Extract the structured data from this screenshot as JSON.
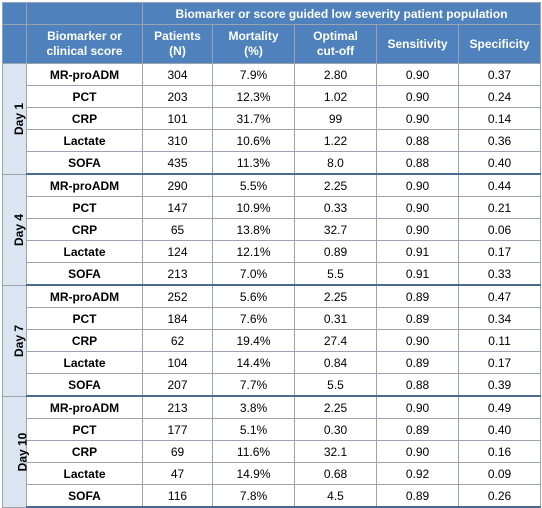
{
  "header": {
    "group_title": "Biomarker or score guided low severity patient population",
    "marker_col_line1": "Biomarker or",
    "marker_col_line2": "clinical score",
    "patients_line1": "Patients",
    "patients_line2": "(N)",
    "mortality_line1": "Mortality",
    "mortality_line2": "(%)",
    "cutoff_line1": "Optimal",
    "cutoff_line2": "cut-off",
    "sensitivity": "Sensitivity",
    "specificity": "Specificity"
  },
  "days": [
    {
      "label": "Day 1",
      "rows": [
        {
          "marker": "MR-proADM",
          "patients": "304",
          "mortality": "7.9%",
          "cutoff": "2.80",
          "sensitivity": "0.90",
          "specificity": "0.37"
        },
        {
          "marker": "PCT",
          "patients": "203",
          "mortality": "12.3%",
          "cutoff": "1.02",
          "sensitivity": "0.90",
          "specificity": "0.24"
        },
        {
          "marker": "CRP",
          "patients": "101",
          "mortality": "31.7%",
          "cutoff": "99",
          "sensitivity": "0.90",
          "specificity": "0.14"
        },
        {
          "marker": "Lactate",
          "patients": "310",
          "mortality": "10.6%",
          "cutoff": "1.22",
          "sensitivity": "0.88",
          "specificity": "0.36"
        },
        {
          "marker": "SOFA",
          "patients": "435",
          "mortality": "11.3%",
          "cutoff": "8.0",
          "sensitivity": "0.88",
          "specificity": "0.40"
        }
      ]
    },
    {
      "label": "Day 4",
      "rows": [
        {
          "marker": "MR-proADM",
          "patients": "290",
          "mortality": "5.5%",
          "cutoff": "2.25",
          "sensitivity": "0.90",
          "specificity": "0.44"
        },
        {
          "marker": "PCT",
          "patients": "147",
          "mortality": "10.9%",
          "cutoff": "0.33",
          "sensitivity": "0.90",
          "specificity": "0.21"
        },
        {
          "marker": "CRP",
          "patients": "65",
          "mortality": "13.8%",
          "cutoff": "32.7",
          "sensitivity": "0.90",
          "specificity": "0.06"
        },
        {
          "marker": "Lactate",
          "patients": "124",
          "mortality": "12.1%",
          "cutoff": "0.89",
          "sensitivity": "0.91",
          "specificity": "0.17"
        },
        {
          "marker": "SOFA",
          "patients": "213",
          "mortality": "7.0%",
          "cutoff": "5.5",
          "sensitivity": "0.91",
          "specificity": "0.33"
        }
      ]
    },
    {
      "label": "Day 7",
      "rows": [
        {
          "marker": "MR-proADM",
          "patients": "252",
          "mortality": "5.6%",
          "cutoff": "2.25",
          "sensitivity": "0.89",
          "specificity": "0.47"
        },
        {
          "marker": "PCT",
          "patients": "184",
          "mortality": "7.6%",
          "cutoff": "0.31",
          "sensitivity": "0.89",
          "specificity": "0.34"
        },
        {
          "marker": "CRP",
          "patients": "62",
          "mortality": "19.4%",
          "cutoff": "27.4",
          "sensitivity": "0.90",
          "specificity": "0.11"
        },
        {
          "marker": "Lactate",
          "patients": "104",
          "mortality": "14.4%",
          "cutoff": "0.84",
          "sensitivity": "0.89",
          "specificity": "0.17"
        },
        {
          "marker": "SOFA",
          "patients": "207",
          "mortality": "7.7%",
          "cutoff": "5.5",
          "sensitivity": "0.88",
          "specificity": "0.39"
        }
      ]
    },
    {
      "label": "Day 10",
      "rows": [
        {
          "marker": "MR-proADM",
          "patients": "213",
          "mortality": "3.8%",
          "cutoff": "2.25",
          "sensitivity": "0.90",
          "specificity": "0.49"
        },
        {
          "marker": "PCT",
          "patients": "177",
          "mortality": "5.1%",
          "cutoff": "0.30",
          "sensitivity": "0.89",
          "specificity": "0.40"
        },
        {
          "marker": "CRP",
          "patients": "69",
          "mortality": "11.6%",
          "cutoff": "32.1",
          "sensitivity": "0.90",
          "specificity": "0.16"
        },
        {
          "marker": "Lactate",
          "patients": "47",
          "mortality": "14.9%",
          "cutoff": "0.68",
          "sensitivity": "0.92",
          "specificity": "0.09"
        },
        {
          "marker": "SOFA",
          "patients": "116",
          "mortality": "7.8%",
          "cutoff": "4.5",
          "sensitivity": "0.89",
          "specificity": "0.26"
        }
      ]
    }
  ]
}
